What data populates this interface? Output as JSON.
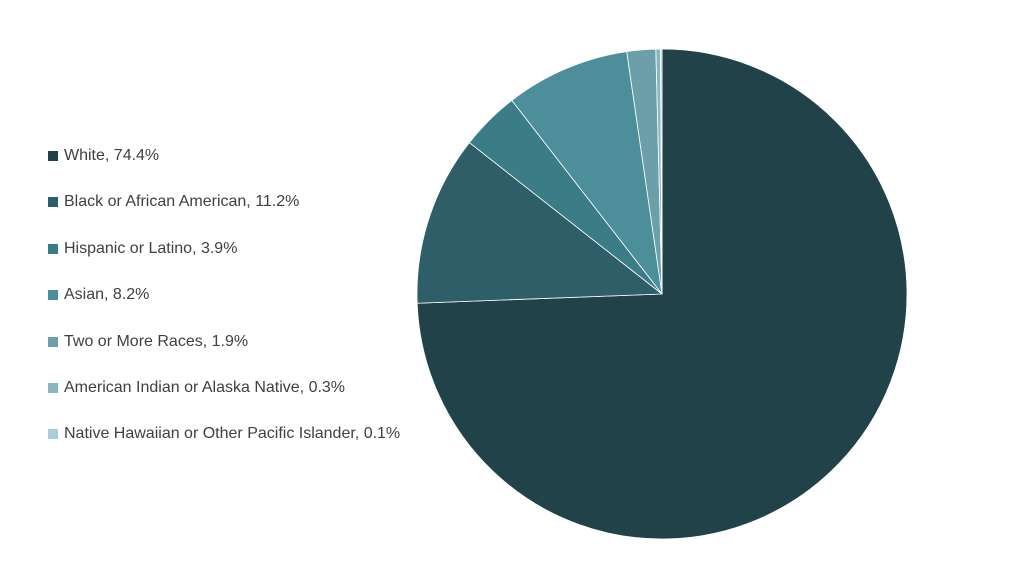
{
  "chart_data": {
    "type": "pie",
    "title": "",
    "legend_position": "left",
    "start_angle_deg": 0,
    "direction": "clockwise",
    "slices": [
      {
        "label": "White, 74.4%",
        "category": "White",
        "value": 74.4,
        "color": "#224249"
      },
      {
        "label": "Black or African American, 11.2%",
        "category": "Black or African American",
        "value": 11.2,
        "color": "#2e5f68"
      },
      {
        "label": "Hispanic or Latino, 3.9%",
        "category": "Hispanic or Latino",
        "value": 3.9,
        "color": "#3b7d87"
      },
      {
        "label": "Asian, 8.2%",
        "category": "Asian",
        "value": 8.2,
        "color": "#4c8f9b"
      },
      {
        "label": "Two or More Races, 1.9%",
        "category": "Two or More Races",
        "value": 1.9,
        "color": "#6c9faa"
      },
      {
        "label": "American Indian or Alaska Native, 0.3%",
        "category": "American Indian or Alaska Native",
        "value": 0.3,
        "color": "#86b8c2"
      },
      {
        "label": "Native Hawaiian or Other Pacific Islander, 0.1%",
        "category": "Native Hawaiian or Other Pacific Islander",
        "value": 0.1,
        "color": "#a4cfd7"
      }
    ]
  }
}
